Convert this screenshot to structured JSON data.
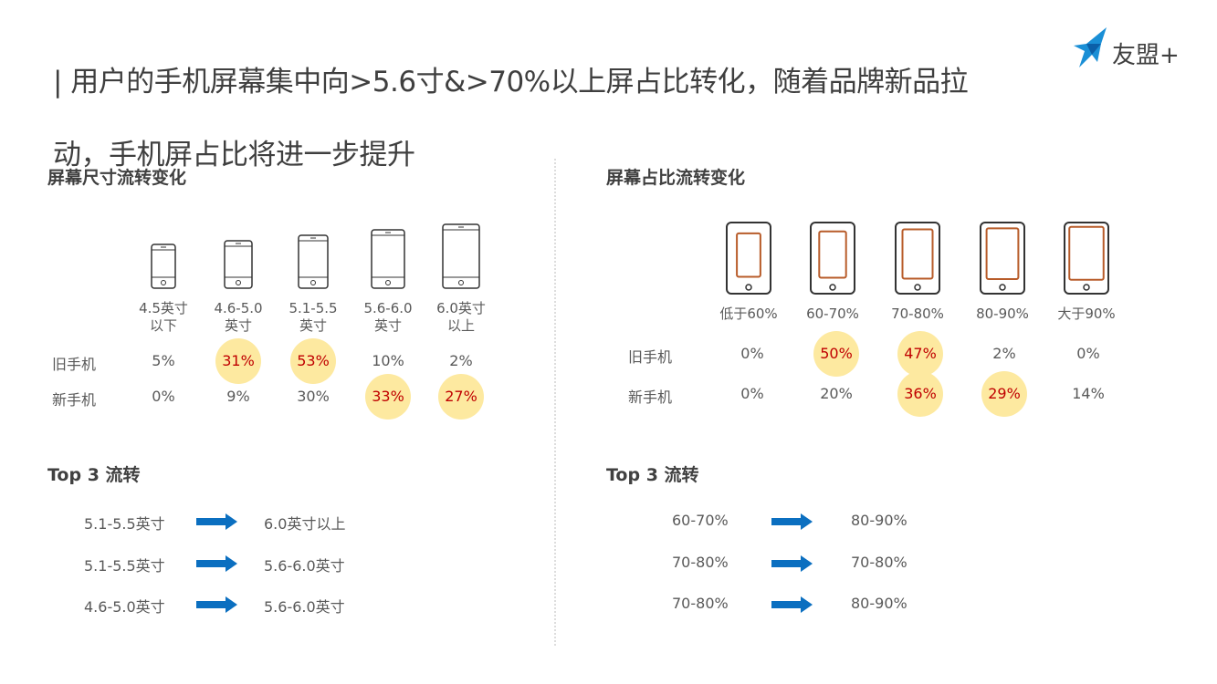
{
  "header": {
    "title_lines": [
      "| 用户的手机屏幕集中向>5.6寸&>70%以上屏占比转化，随着品牌新品拉",
      "动，手机屏占比将进一步提升"
    ],
    "logo": "友盟+"
  },
  "left": {
    "title": "屏幕尺寸流转变化",
    "columns": [
      "4.5英寸\n以下",
      "4.6-5.0\n英寸",
      "5.1-5.5\n英寸",
      "5.6-6.0\n英寸",
      "6.0英寸\n以上"
    ],
    "rows": [
      {
        "label": "旧手机",
        "values": [
          "5%",
          "31%",
          "53%",
          "10%",
          "2%"
        ],
        "highlighted": [
          false,
          true,
          true,
          false,
          false
        ]
      },
      {
        "label": "新手机",
        "values": [
          "0%",
          "9%",
          "30%",
          "33%",
          "27%"
        ],
        "highlighted": [
          false,
          false,
          false,
          true,
          true
        ]
      }
    ],
    "top_title": "Top 3 流转",
    "flows": [
      {
        "from": "5.1-5.5英寸",
        "to": "6.0英寸以上"
      },
      {
        "from": "5.1-5.5英寸",
        "to": "5.6-6.0英寸"
      },
      {
        "from": "4.6-5.0英寸",
        "to": "5.6-6.0英寸"
      }
    ]
  },
  "right": {
    "title": "屏幕占比流转变化",
    "columns": [
      "低于60%",
      "60-70%",
      "70-80%",
      "80-90%",
      "大于90%"
    ],
    "rows": [
      {
        "label": "旧手机",
        "values": [
          "0%",
          "50%",
          "47%",
          "2%",
          "0%"
        ],
        "highlighted": [
          false,
          true,
          true,
          false,
          false
        ]
      },
      {
        "label": "新手机",
        "values": [
          "0%",
          "20%",
          "36%",
          "29%",
          "14%"
        ],
        "highlighted": [
          false,
          false,
          true,
          true,
          false
        ]
      }
    ],
    "top_title": "Top 3 流转",
    "flows": [
      {
        "from": "60-70%",
        "to": "80-90%"
      },
      {
        "from": "70-80%",
        "to": "70-80%"
      },
      {
        "from": "70-80%",
        "to": "80-90%"
      }
    ]
  }
}
